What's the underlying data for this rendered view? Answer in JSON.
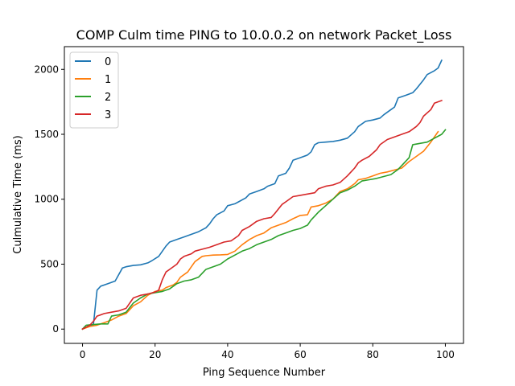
{
  "chart_data": {
    "type": "line",
    "title": "COMP Culm time PING to 10.0.0.2 on network Packet_Loss",
    "xlabel": "Ping Sequence Number",
    "ylabel": "Culmulative Time (ms)",
    "xlim": [
      -5,
      105
    ],
    "ylim": [
      -110,
      2175
    ],
    "xticks": [
      0,
      20,
      40,
      60,
      80,
      100
    ],
    "yticks": [
      0,
      500,
      1000,
      1500,
      2000
    ],
    "grid": false,
    "legend_position": "top-left",
    "series": [
      {
        "name": "0",
        "color": "#1f77b4",
        "x": [
          0,
          2,
          3,
          4,
          5,
          7,
          9,
          11,
          12,
          14,
          16,
          18,
          19,
          21,
          23,
          24,
          26,
          28,
          30,
          32,
          34,
          35,
          36,
          37,
          39,
          40,
          42,
          43,
          45,
          46,
          48,
          50,
          51,
          53,
          54,
          56,
          57,
          58,
          60,
          62,
          63,
          64,
          65,
          67,
          69,
          71,
          73,
          75,
          76,
          78,
          80,
          82,
          83,
          85,
          86,
          87,
          89,
          91,
          92,
          94,
          95,
          97,
          98,
          99
        ],
        "y": [
          0,
          25,
          35,
          300,
          330,
          350,
          370,
          470,
          480,
          490,
          495,
          510,
          525,
          560,
          640,
          670,
          690,
          710,
          730,
          750,
          780,
          810,
          850,
          880,
          910,
          950,
          965,
          980,
          1010,
          1040,
          1060,
          1080,
          1100,
          1120,
          1180,
          1200,
          1240,
          1300,
          1320,
          1340,
          1365,
          1420,
          1435,
          1440,
          1445,
          1455,
          1470,
          1520,
          1560,
          1600,
          1610,
          1625,
          1650,
          1690,
          1710,
          1780,
          1800,
          1820,
          1850,
          1920,
          1960,
          1990,
          2010,
          2070
        ]
      },
      {
        "name": "1",
        "color": "#ff7f0e",
        "x": [
          0,
          2,
          4,
          6,
          8,
          10,
          12,
          14,
          16,
          18,
          20,
          22,
          23,
          25,
          26,
          27,
          29,
          30,
          31,
          33,
          34,
          36,
          38,
          40,
          42,
          44,
          46,
          48,
          50,
          52,
          54,
          56,
          58,
          60,
          62,
          63,
          65,
          67,
          69,
          71,
          73,
          75,
          76,
          78,
          80,
          82,
          84,
          86,
          88,
          90,
          92,
          94,
          96,
          98
        ],
        "y": [
          0,
          20,
          30,
          50,
          70,
          100,
          120,
          180,
          210,
          260,
          290,
          300,
          320,
          340,
          360,
          400,
          440,
          480,
          520,
          560,
          565,
          570,
          572,
          575,
          600,
          650,
          690,
          720,
          740,
          780,
          800,
          820,
          850,
          875,
          880,
          940,
          950,
          970,
          1000,
          1060,
          1080,
          1120,
          1150,
          1160,
          1180,
          1200,
          1210,
          1225,
          1240,
          1290,
          1330,
          1370,
          1440,
          1520
        ]
      },
      {
        "name": "2",
        "color": "#2ca02c",
        "x": [
          0,
          1,
          3,
          5,
          7,
          8,
          10,
          12,
          14,
          16,
          18,
          20,
          22,
          24,
          26,
          28,
          30,
          32,
          34,
          36,
          38,
          40,
          42,
          44,
          46,
          48,
          50,
          52,
          54,
          56,
          58,
          60,
          62,
          63,
          65,
          67,
          69,
          71,
          73,
          75,
          77,
          79,
          81,
          83,
          85,
          87,
          88,
          90,
          91,
          93,
          95,
          97,
          99,
          100
        ],
        "y": [
          0,
          30,
          35,
          40,
          40,
          100,
          110,
          130,
          200,
          240,
          270,
          280,
          290,
          310,
          350,
          370,
          380,
          400,
          460,
          480,
          500,
          540,
          570,
          600,
          620,
          650,
          670,
          690,
          720,
          740,
          760,
          775,
          800,
          840,
          900,
          950,
          1000,
          1050,
          1070,
          1100,
          1140,
          1150,
          1160,
          1175,
          1190,
          1230,
          1260,
          1320,
          1420,
          1430,
          1440,
          1470,
          1500,
          1535
        ]
      },
      {
        "name": "3",
        "color": "#d62728",
        "x": [
          0,
          2,
          3,
          4,
          6,
          8,
          10,
          12,
          14,
          16,
          18,
          20,
          21,
          22,
          23,
          24,
          26,
          27,
          28,
          30,
          31,
          33,
          35,
          37,
          39,
          41,
          43,
          44,
          46,
          48,
          50,
          52,
          53,
          55,
          56,
          58,
          60,
          62,
          64,
          65,
          67,
          69,
          71,
          73,
          74,
          75,
          76,
          77,
          79,
          81,
          82,
          84,
          86,
          88,
          90,
          92,
          93,
          94,
          96,
          97,
          99
        ],
        "y": [
          0,
          30,
          60,
          100,
          120,
          130,
          140,
          160,
          240,
          260,
          270,
          285,
          300,
          380,
          440,
          460,
          500,
          540,
          560,
          580,
          600,
          615,
          630,
          650,
          670,
          680,
          720,
          760,
          790,
          830,
          850,
          860,
          890,
          960,
          980,
          1020,
          1030,
          1040,
          1050,
          1080,
          1100,
          1110,
          1130,
          1180,
          1210,
          1240,
          1280,
          1300,
          1330,
          1380,
          1420,
          1460,
          1480,
          1500,
          1520,
          1560,
          1590,
          1640,
          1690,
          1740,
          1760
        ]
      }
    ]
  }
}
